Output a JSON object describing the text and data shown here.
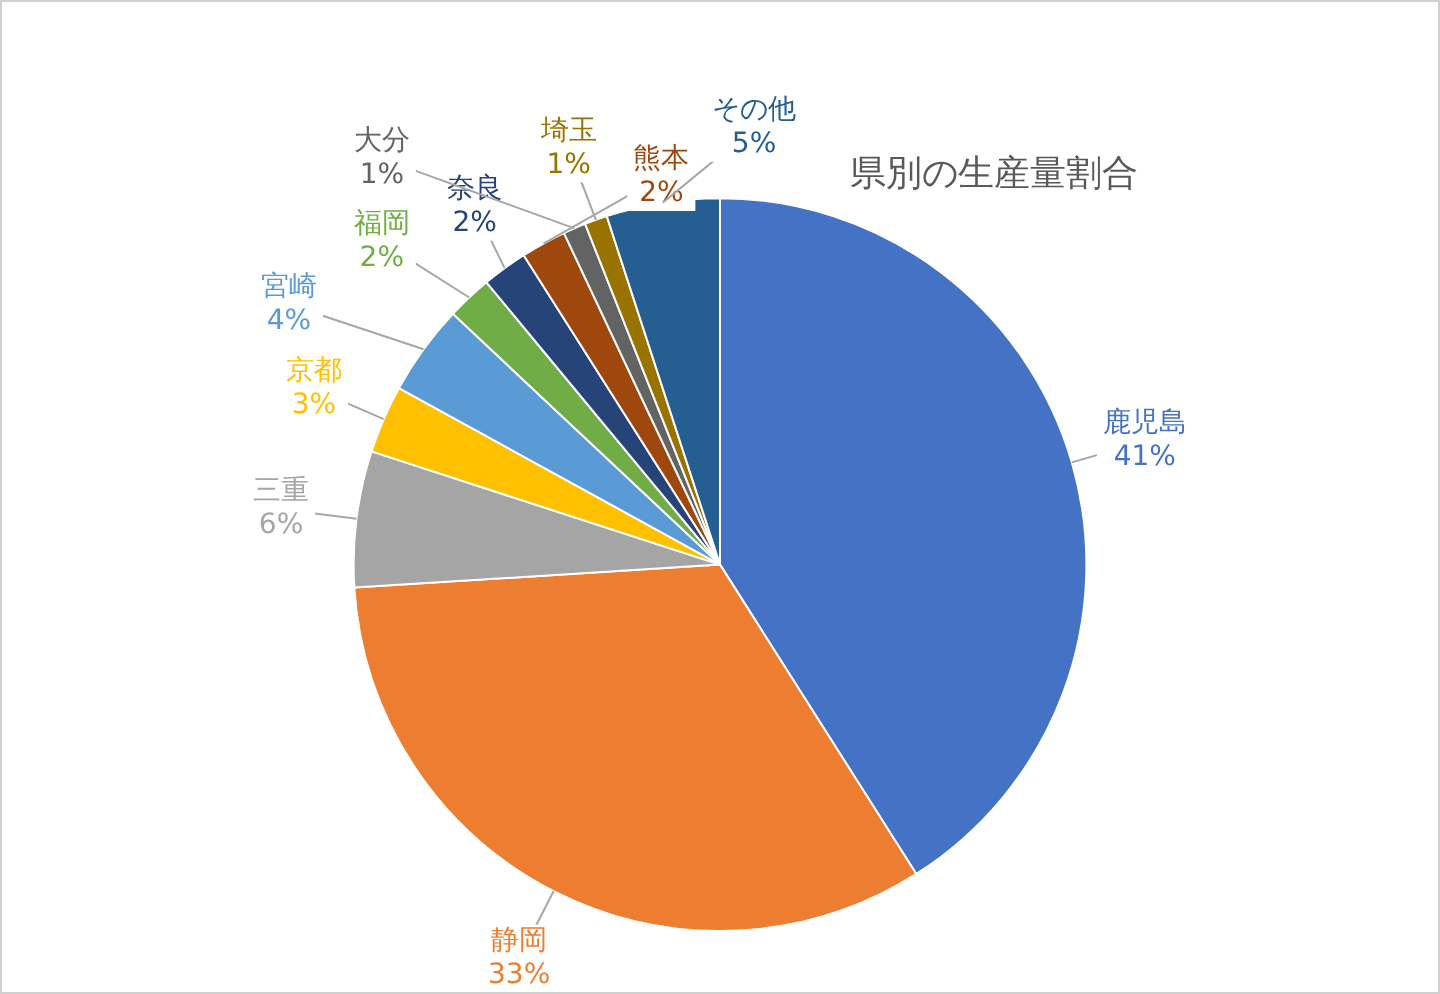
{
  "chart_data": {
    "type": "pie",
    "title": "県別の生産量割合",
    "categories": [
      "鹿児島",
      "静岡",
      "三重",
      "京都",
      "宮崎",
      "福岡",
      "奈良",
      "熊本",
      "大分",
      "埼玉",
      "その他"
    ],
    "values": [
      41,
      33,
      6,
      3,
      4,
      2,
      2,
      2,
      1,
      1,
      5
    ],
    "colors": [
      "#4472c4",
      "#ed7d31",
      "#a5a5a5",
      "#ffc000",
      "#5b9bd5",
      "#70ad47",
      "#264478",
      "#9e480e",
      "#636363",
      "#997300",
      "#255e91"
    ],
    "value_labels": [
      "41%",
      "33%",
      "6%",
      "3%",
      "4%",
      "2%",
      "2%",
      "2%",
      "1%",
      "1%",
      "5%"
    ],
    "legend": false
  }
}
